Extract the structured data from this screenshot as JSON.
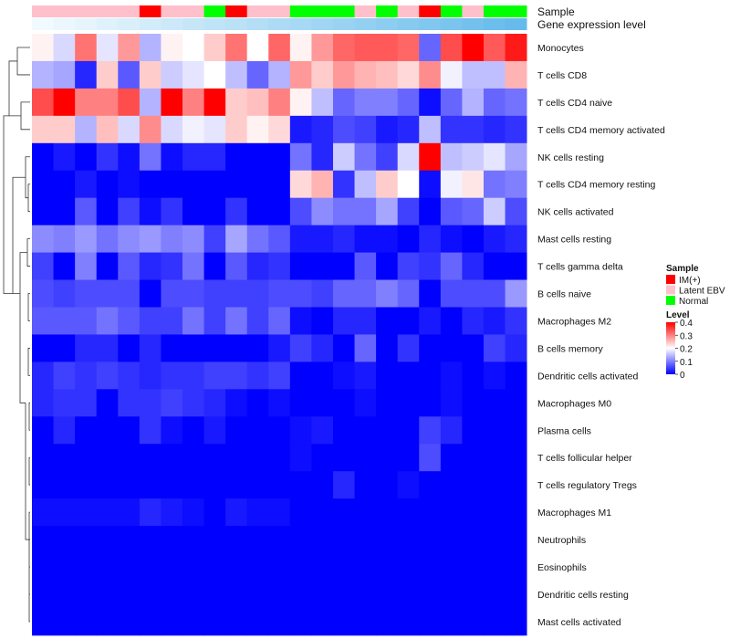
{
  "chart_data": {
    "type": "heatmap",
    "annotation_rows": [
      "Sample",
      "Gene expression level"
    ],
    "rows": [
      "Monocytes",
      "T cells CD8",
      "T cells CD4 naive",
      "T cells CD4 memory activated",
      "NK cells resting",
      "T cells CD4 memory resting",
      "NK cells activated",
      "Mast cells resting",
      "T cells gamma delta",
      "B cells naive",
      "Macrophages M2",
      "B cells memory",
      "Dendritic cells activated",
      "Macrophages M0",
      "Plasma cells",
      "T cells follicular helper",
      "T cells regulatory  Tregs",
      "Macrophages M1",
      "Neutrophils",
      "Eosinophils",
      "Dendritic cells resting",
      "Mast cells activated"
    ],
    "sample_groups": [
      "Latent EBV",
      "Latent EBV",
      "Latent EBV",
      "Latent EBV",
      "Latent EBV",
      "IM(+)",
      "Latent EBV",
      "Latent EBV",
      "Normal",
      "IM(+)",
      "Latent EBV",
      "Latent EBV",
      "Normal",
      "Normal",
      "Normal",
      "Latent EBV",
      "Normal",
      "Latent EBV",
      "IM(+)",
      "Normal",
      "Latent EBV",
      "Normal",
      "Normal"
    ],
    "expression_level": [
      0.02,
      0.05,
      0.09,
      0.13,
      0.17,
      0.21,
      0.25,
      0.29,
      0.33,
      0.37,
      0.41,
      0.45,
      0.49,
      0.53,
      0.57,
      0.61,
      0.65,
      0.69,
      0.73,
      0.77,
      0.81,
      0.86,
      0.9
    ],
    "values": [
      [
        0.21,
        0.17,
        0.31,
        0.18,
        0.28,
        0.14,
        0.21,
        0.2,
        0.24,
        0.31,
        0.2,
        0.32,
        0.21,
        0.28,
        0.32,
        0.33,
        0.33,
        0.32,
        0.08,
        0.34,
        0.4,
        0.33,
        0.38
      ],
      [
        0.14,
        0.13,
        0.03,
        0.24,
        0.07,
        0.24,
        0.16,
        0.18,
        0.2,
        0.15,
        0.08,
        0.14,
        0.28,
        0.24,
        0.28,
        0.26,
        0.25,
        0.23,
        0.29,
        0.19,
        0.15,
        0.15,
        0.26
      ],
      [
        0.34,
        0.4,
        0.3,
        0.3,
        0.34,
        0.14,
        0.4,
        0.3,
        0.4,
        0.24,
        0.25,
        0.3,
        0.21,
        0.15,
        0.08,
        0.1,
        0.1,
        0.08,
        0.01,
        0.08,
        0.14,
        0.08,
        0.09
      ],
      [
        0.24,
        0.24,
        0.14,
        0.25,
        0.17,
        0.29,
        0.17,
        0.19,
        0.18,
        0.24,
        0.21,
        0.23,
        0.02,
        0.03,
        0.06,
        0.05,
        0.02,
        0.03,
        0.15,
        0.04,
        0.04,
        0.03,
        0.04
      ],
      [
        0.0,
        0.02,
        0.0,
        0.04,
        0.01,
        0.09,
        0.01,
        0.03,
        0.03,
        0.0,
        0.0,
        0.0,
        0.09,
        0.03,
        0.16,
        0.09,
        0.05,
        0.17,
        0.4,
        0.15,
        0.16,
        0.18,
        0.13
      ],
      [
        0.0,
        0.0,
        0.02,
        0.0,
        0.01,
        0.0,
        0.0,
        0.0,
        0.0,
        0.0,
        0.0,
        0.0,
        0.23,
        0.26,
        0.04,
        0.15,
        0.24,
        0.2,
        0.01,
        0.19,
        0.22,
        0.09,
        0.1
      ],
      [
        0.0,
        0.0,
        0.07,
        0.0,
        0.05,
        0.01,
        0.04,
        0.0,
        0.0,
        0.04,
        0.0,
        0.0,
        0.06,
        0.11,
        0.09,
        0.09,
        0.13,
        0.05,
        0.0,
        0.07,
        0.08,
        0.16,
        0.06
      ],
      [
        0.11,
        0.1,
        0.12,
        0.09,
        0.11,
        0.12,
        0.1,
        0.11,
        0.05,
        0.13,
        0.09,
        0.07,
        0.02,
        0.02,
        0.03,
        0.01,
        0.01,
        0.0,
        0.03,
        0.01,
        0.0,
        0.02,
        0.03
      ],
      [
        0.05,
        0.0,
        0.1,
        0.0,
        0.07,
        0.03,
        0.04,
        0.09,
        0.0,
        0.07,
        0.03,
        0.04,
        0.0,
        0.0,
        0.0,
        0.07,
        0.0,
        0.05,
        0.04,
        0.08,
        0.03,
        0.0,
        0.0
      ],
      [
        0.06,
        0.05,
        0.06,
        0.06,
        0.06,
        0.0,
        0.06,
        0.06,
        0.05,
        0.05,
        0.05,
        0.06,
        0.06,
        0.05,
        0.08,
        0.08,
        0.1,
        0.08,
        0.0,
        0.06,
        0.06,
        0.06,
        0.12
      ],
      [
        0.07,
        0.07,
        0.07,
        0.09,
        0.07,
        0.05,
        0.05,
        0.09,
        0.05,
        0.09,
        0.05,
        0.08,
        0.01,
        0.0,
        0.03,
        0.03,
        0.0,
        0.0,
        0.02,
        0.0,
        0.03,
        0.02,
        0.04
      ],
      [
        0.0,
        0.0,
        0.03,
        0.03,
        0.0,
        0.03,
        0.0,
        0.0,
        0.0,
        0.0,
        0.0,
        0.02,
        0.05,
        0.03,
        0.0,
        0.08,
        0.0,
        0.04,
        0.0,
        0.0,
        0.0,
        0.05,
        0.03
      ],
      [
        0.03,
        0.05,
        0.04,
        0.05,
        0.04,
        0.03,
        0.04,
        0.04,
        0.05,
        0.05,
        0.04,
        0.05,
        0.0,
        0.0,
        0.01,
        0.02,
        0.0,
        0.0,
        0.0,
        0.01,
        0.0,
        0.01,
        0.0
      ],
      [
        0.03,
        0.04,
        0.04,
        0.0,
        0.04,
        0.04,
        0.05,
        0.04,
        0.03,
        0.01,
        0.0,
        0.01,
        0.0,
        0.0,
        0.0,
        0.01,
        0.0,
        0.0,
        0.0,
        0.01,
        0.0,
        0.0,
        0.0
      ],
      [
        0.0,
        0.03,
        0.0,
        0.0,
        0.0,
        0.04,
        0.01,
        0.0,
        0.02,
        0.0,
        0.0,
        0.0,
        0.01,
        0.02,
        0.0,
        0.0,
        0.0,
        0.0,
        0.05,
        0.03,
        0.0,
        0.0,
        0.0
      ],
      [
        0.0,
        0.0,
        0.0,
        0.0,
        0.0,
        0.0,
        0.0,
        0.0,
        0.0,
        0.0,
        0.0,
        0.0,
        0.01,
        0.0,
        0.0,
        0.0,
        0.0,
        0.0,
        0.06,
        0.0,
        0.0,
        0.0,
        0.0
      ],
      [
        0.0,
        0.0,
        0.0,
        0.0,
        0.0,
        0.0,
        0.0,
        0.0,
        0.0,
        0.0,
        0.0,
        0.0,
        0.0,
        0.0,
        0.03,
        0.0,
        0.0,
        0.01,
        0.0,
        0.0,
        0.0,
        0.0,
        0.0
      ],
      [
        0.01,
        0.01,
        0.01,
        0.01,
        0.01,
        0.03,
        0.02,
        0.01,
        0.0,
        0.02,
        0.01,
        0.01,
        0.0,
        0.0,
        0.0,
        0.0,
        0.0,
        0.0,
        0.0,
        0.0,
        0.0,
        0.0,
        0.0
      ],
      [
        0.0,
        0.0,
        0.0,
        0.0,
        0.0,
        0.0,
        0.0,
        0.0,
        0.0,
        0.0,
        0.0,
        0.0,
        0.0,
        0.0,
        0.0,
        0.0,
        0.0,
        0.0,
        0.0,
        0.0,
        0.0,
        0.0,
        0.0
      ],
      [
        0.0,
        0.0,
        0.0,
        0.0,
        0.0,
        0.0,
        0.0,
        0.0,
        0.0,
        0.0,
        0.0,
        0.0,
        0.0,
        0.0,
        0.0,
        0.0,
        0.0,
        0.0,
        0.0,
        0.0,
        0.0,
        0.0,
        0.0
      ],
      [
        0.0,
        0.0,
        0.0,
        0.0,
        0.0,
        0.0,
        0.0,
        0.0,
        0.0,
        0.0,
        0.0,
        0.0,
        0.0,
        0.0,
        0.0,
        0.0,
        0.0,
        0.0,
        0.0,
        0.0,
        0.0,
        0.0,
        0.0
      ],
      [
        0.0,
        0.0,
        0.0,
        0.0,
        0.0,
        0.0,
        0.0,
        0.0,
        0.0,
        0.0,
        0.0,
        0.0,
        0.0,
        0.0,
        0.0,
        0.0,
        0.0,
        0.0,
        0.0,
        0.0,
        0.0,
        0.0,
        0.0
      ]
    ],
    "legend": {
      "sample": {
        "title": "Sample",
        "items": [
          "IM(+)",
          "Latent EBV",
          "Normal"
        ]
      },
      "level": {
        "title": "Level",
        "range": [
          0,
          0.4
        ],
        "ticks": [
          "0.4",
          "0.3",
          "0.2",
          "0.1",
          "0"
        ],
        "tick_values": [
          0.4,
          0.3,
          0.2,
          0.1,
          0
        ]
      }
    }
  },
  "colors": {
    "low": "#0000ff",
    "mid": "#ffffff",
    "high": "#ff0000",
    "groups": {
      "IM(+)": "#ff0000",
      "Latent EBV": "#ffc0cb",
      "Normal": "#00ff00"
    },
    "expression_low": "#f4fbfe",
    "expression_high": "#56b4e9",
    "dendrogram": "#333333"
  }
}
